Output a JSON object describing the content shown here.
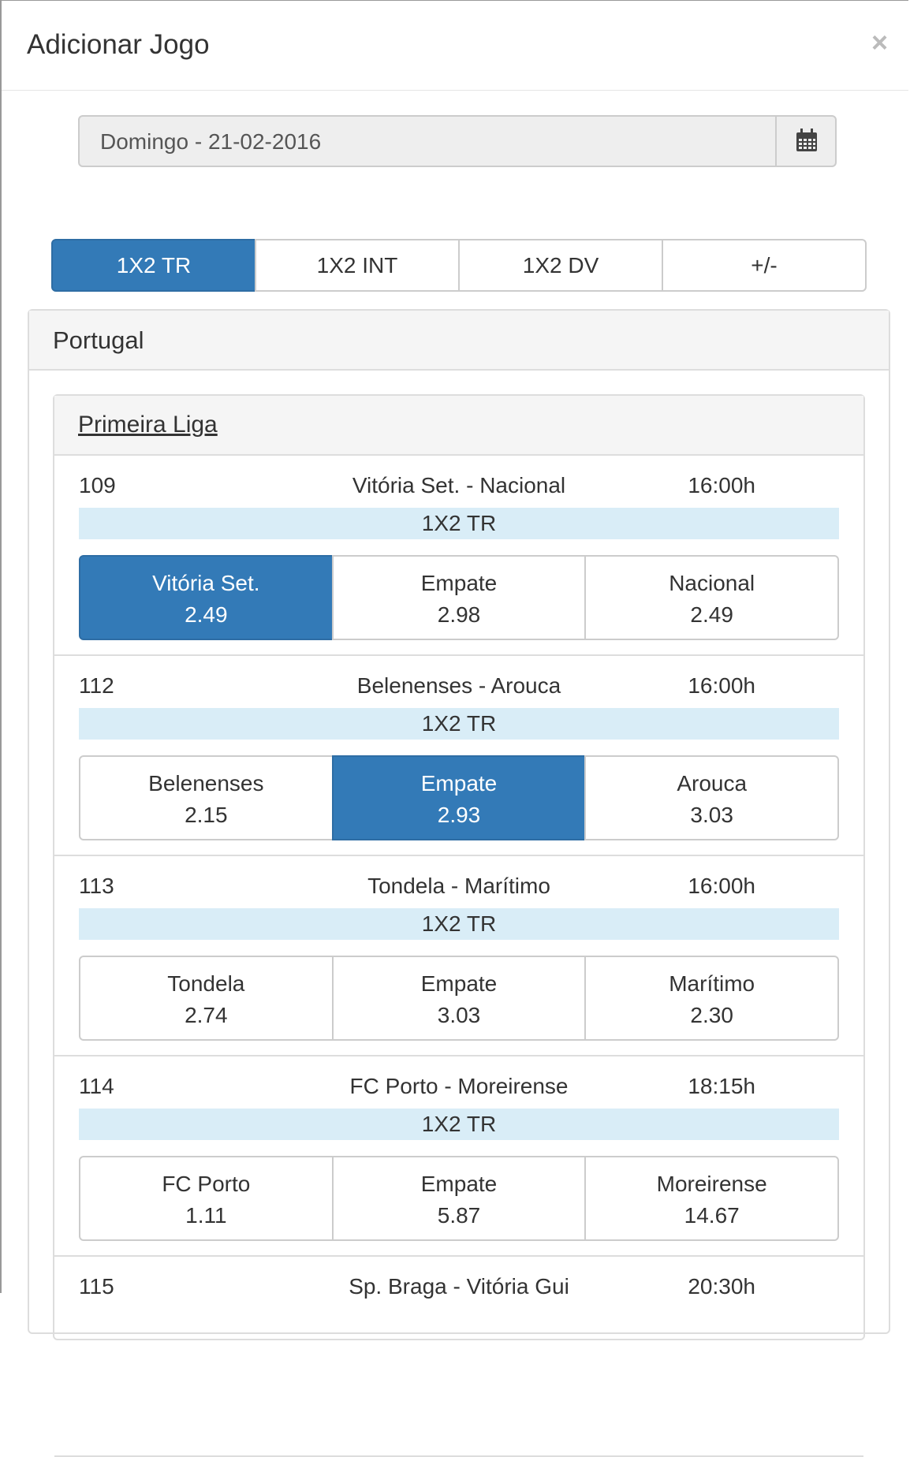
{
  "modal": {
    "title": "Adicionar Jogo",
    "close": "×"
  },
  "date": "Domingo - 21-02-2016",
  "tabs": [
    "1X2 TR",
    "1X2 INT",
    "1X2 DV",
    "+/-"
  ],
  "active_tab": 0,
  "country": "Portugal",
  "league": "Primeira Liga",
  "matches": [
    {
      "id": 109,
      "teams": "Vitória Set. - Nacional",
      "time": "16:00h",
      "market": "1X2 TR",
      "selected": 0,
      "options": [
        {
          "label": "Vitória Set.",
          "odd": "2.49"
        },
        {
          "label": "Empate",
          "odd": "2.98"
        },
        {
          "label": "Nacional",
          "odd": "2.49"
        }
      ]
    },
    {
      "id": 112,
      "teams": "Belenenses - Arouca",
      "time": "16:00h",
      "market": "1X2 TR",
      "selected": 1,
      "options": [
        {
          "label": "Belenenses",
          "odd": "2.15"
        },
        {
          "label": "Empate",
          "odd": "2.93"
        },
        {
          "label": "Arouca",
          "odd": "3.03"
        }
      ]
    },
    {
      "id": 113,
      "teams": "Tondela - Marítimo",
      "time": "16:00h",
      "market": "1X2 TR",
      "selected": null,
      "options": [
        {
          "label": "Tondela",
          "odd": "2.74"
        },
        {
          "label": "Empate",
          "odd": "3.03"
        },
        {
          "label": "Marítimo",
          "odd": "2.30"
        }
      ]
    },
    {
      "id": 114,
      "teams": "FC Porto - Moreirense",
      "time": "18:15h",
      "market": "1X2 TR",
      "selected": null,
      "options": [
        {
          "label": "FC Porto",
          "odd": "1.11"
        },
        {
          "label": "Empate",
          "odd": "5.87"
        },
        {
          "label": "Moreirense",
          "odd": "14.67"
        }
      ]
    },
    {
      "id": 115,
      "teams": "Sp. Braga - Vitória Gui",
      "time": "20:30h"
    }
  ]
}
